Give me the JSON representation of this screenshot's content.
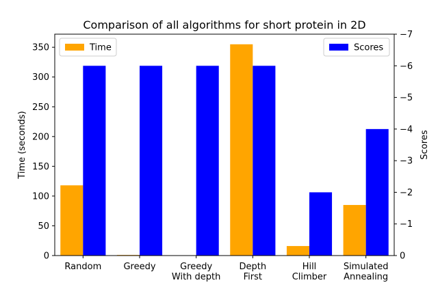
{
  "chart_data": {
    "type": "bar",
    "title": "Comparison of all algorithms for short protein in 2D",
    "categories": [
      [
        "Random"
      ],
      [
        "Greedy"
      ],
      [
        "Greedy",
        "With depth"
      ],
      [
        "Depth",
        "First"
      ],
      [
        "Hill",
        "Climber"
      ],
      [
        "Simulated",
        "Annealing"
      ]
    ],
    "series": [
      {
        "name": "Time",
        "axis": "left",
        "color": "#ffa500",
        "values": [
          118,
          1,
          0,
          355,
          16,
          85
        ]
      },
      {
        "name": "Scores",
        "axis": "right",
        "color": "#0000ff",
        "values": [
          -6,
          -6,
          -6,
          -6,
          -2,
          -4
        ]
      }
    ],
    "y_left": {
      "label": "Time (seconds)",
      "lim": [
        0,
        372
      ],
      "ticks": [
        0,
        50,
        100,
        150,
        200,
        250,
        300,
        350
      ]
    },
    "y_right": {
      "label": "Scores",
      "lim": [
        0,
        -7
      ],
      "ticks": [
        0,
        -1,
        -2,
        -3,
        -4,
        -5,
        -6,
        -7
      ],
      "tick_labels": [
        "0",
        "−1",
        "−2",
        "−3",
        "−4",
        "−5",
        "−6",
        "−7"
      ],
      "inverted": true
    },
    "grid": false,
    "legends": [
      {
        "series": "Time",
        "placement": "top-left"
      },
      {
        "series": "Scores",
        "placement": "top-right"
      }
    ]
  }
}
